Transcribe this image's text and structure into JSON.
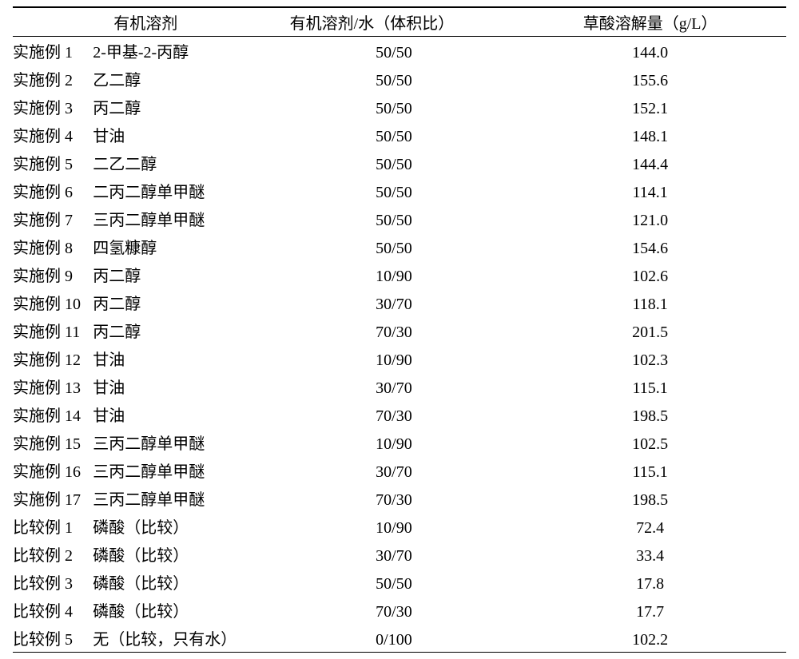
{
  "table": {
    "headers": {
      "c2": "有机溶剂",
      "c3": "有机溶剂/水（体积比）",
      "c4": "草酸溶解量（g/L）"
    },
    "rows": [
      {
        "c1": "实施例 1",
        "c2": "2-甲基-2-丙醇",
        "c3": "50/50",
        "c4": "144.0"
      },
      {
        "c1": "实施例 2",
        "c2": "乙二醇",
        "c3": "50/50",
        "c4": "155.6"
      },
      {
        "c1": "实施例 3",
        "c2": "丙二醇",
        "c3": "50/50",
        "c4": "152.1"
      },
      {
        "c1": "实施例 4",
        "c2": "甘油",
        "c3": "50/50",
        "c4": "148.1"
      },
      {
        "c1": "实施例 5",
        "c2": "二乙二醇",
        "c3": "50/50",
        "c4": "144.4"
      },
      {
        "c1": "实施例 6",
        "c2": "二丙二醇单甲醚",
        "c3": "50/50",
        "c4": "114.1"
      },
      {
        "c1": "实施例 7",
        "c2": "三丙二醇单甲醚",
        "c3": "50/50",
        "c4": "121.0"
      },
      {
        "c1": "实施例 8",
        "c2": "四氢糠醇",
        "c3": "50/50",
        "c4": "154.6"
      },
      {
        "c1": "实施例 9",
        "c2": "丙二醇",
        "c3": "10/90",
        "c4": "102.6"
      },
      {
        "c1": "实施例 10",
        "c2": "丙二醇",
        "c3": "30/70",
        "c4": "118.1"
      },
      {
        "c1": "实施例 11",
        "c2": "丙二醇",
        "c3": "70/30",
        "c4": "201.5"
      },
      {
        "c1": "实施例 12",
        "c2": "甘油",
        "c3": "10/90",
        "c4": "102.3"
      },
      {
        "c1": "实施例 13",
        "c2": "甘油",
        "c3": "30/70",
        "c4": "115.1"
      },
      {
        "c1": "实施例 14",
        "c2": "甘油",
        "c3": "70/30",
        "c4": "198.5"
      },
      {
        "c1": "实施例 15",
        "c2": "三丙二醇单甲醚",
        "c3": "10/90",
        "c4": "102.5"
      },
      {
        "c1": "实施例 16",
        "c2": "三丙二醇单甲醚",
        "c3": "30/70",
        "c4": "115.1"
      },
      {
        "c1": "实施例 17",
        "c2": "三丙二醇单甲醚",
        "c3": "70/30",
        "c4": "198.5"
      },
      {
        "c1": "比较例 1",
        "c2": "磷酸（比较）",
        "c3": "10/90",
        "c4": "72.4"
      },
      {
        "c1": "比较例 2",
        "c2": "磷酸（比较）",
        "c3": "30/70",
        "c4": "33.4"
      },
      {
        "c1": "比较例 3",
        "c2": "磷酸（比较）",
        "c3": "50/50",
        "c4": "17.8"
      },
      {
        "c1": "比较例 4",
        "c2": "磷酸（比较）",
        "c3": "70/30",
        "c4": "17.7"
      },
      {
        "c1": "比较例 5",
        "c2": "无（比较，只有水）",
        "c3": "0/100",
        "c4": "102.2"
      }
    ]
  }
}
